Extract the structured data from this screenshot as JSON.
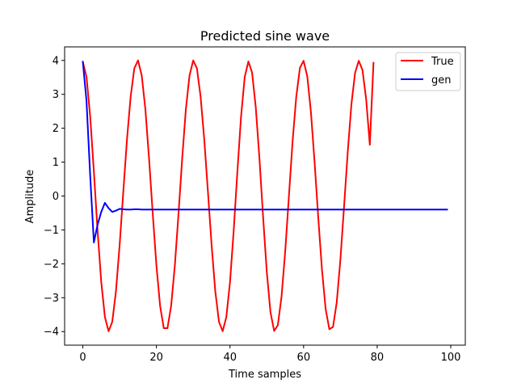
{
  "chart_data": {
    "type": "line",
    "title": "Predicted sine wave",
    "xlabel": "Time samples",
    "ylabel": "Amplitude",
    "xlim": [
      -4.95,
      103.95
    ],
    "ylim": [
      -4.4,
      4.4
    ],
    "xticks": [
      0,
      20,
      40,
      60,
      80,
      100
    ],
    "yticks": [
      -4,
      -3,
      -2,
      -1,
      0,
      1,
      2,
      3,
      4
    ],
    "xtick_labels": [
      "0",
      "20",
      "40",
      "60",
      "80",
      "100"
    ],
    "ytick_labels": [
      "−4",
      "−3",
      "−2",
      "−1",
      "0",
      "1",
      "2",
      "3",
      "4"
    ],
    "grid": false,
    "legend_position": "top-right",
    "series": [
      {
        "name": "True",
        "color": "#ff0000",
        "x": [
          0,
          1,
          2,
          3,
          4,
          5,
          6,
          7,
          8,
          9,
          10,
          11,
          12,
          13,
          14,
          15,
          16,
          17,
          18,
          19,
          20,
          21,
          22,
          23,
          24,
          25,
          26,
          27,
          28,
          29,
          30,
          31,
          32,
          33,
          34,
          35,
          36,
          37,
          38,
          39,
          40,
          41,
          42,
          43,
          44,
          45,
          46,
          47,
          48,
          49,
          50,
          51,
          52,
          53,
          54,
          55,
          56,
          57,
          58,
          59,
          60,
          61,
          62,
          63,
          64,
          65,
          66,
          67,
          68,
          69,
          70,
          71,
          72,
          73,
          74,
          75,
          76,
          77,
          78,
          79
        ],
        "y": [
          3.96,
          3.51,
          2.35,
          0.72,
          -1.01,
          -2.53,
          -3.57,
          -3.99,
          -3.71,
          -2.81,
          -1.45,
          0.13,
          1.67,
          2.94,
          3.77,
          4.0,
          3.56,
          2.56,
          1.1,
          -0.52,
          -2.05,
          -3.24,
          -3.9,
          -3.9,
          -3.24,
          -2.06,
          -0.53,
          1.1,
          2.56,
          3.56,
          4.0,
          3.77,
          2.94,
          1.67,
          0.13,
          -1.45,
          -2.81,
          -3.71,
          -3.99,
          -3.57,
          -2.54,
          -1.02,
          0.71,
          2.34,
          3.51,
          3.97,
          3.64,
          2.62,
          1.11,
          -0.63,
          -2.24,
          -3.43,
          -3.98,
          -3.81,
          -2.97,
          -1.64,
          -0.02,
          1.6,
          2.92,
          3.78,
          3.99,
          3.53,
          2.47,
          0.98,
          -0.66,
          -2.18,
          -3.34,
          -3.93,
          -3.86,
          -3.14,
          -1.88,
          -0.31,
          1.3,
          2.71,
          3.64,
          3.99,
          3.72,
          2.86,
          1.51,
          3.93
        ]
      },
      {
        "name": "gen",
        "color": "#0000ff",
        "x": [
          0,
          1,
          2,
          3,
          4,
          5,
          6,
          7,
          8,
          9,
          10,
          11,
          12,
          13,
          14,
          15,
          16,
          17,
          18,
          19,
          20,
          21,
          22,
          23,
          24,
          25,
          26,
          27,
          28,
          29,
          30,
          31,
          32,
          33,
          34,
          35,
          36,
          37,
          38,
          39,
          40,
          41,
          42,
          43,
          44,
          45,
          46,
          47,
          48,
          49,
          50,
          51,
          52,
          53,
          54,
          55,
          56,
          57,
          58,
          59,
          60,
          61,
          62,
          63,
          64,
          65,
          66,
          67,
          68,
          69,
          70,
          71,
          72,
          73,
          74,
          75,
          76,
          77,
          78,
          79,
          80,
          81,
          82,
          83,
          84,
          85,
          86,
          87,
          88,
          89,
          90,
          91,
          92,
          93,
          94,
          95,
          96,
          97,
          98,
          99
        ],
        "y": [
          3.96,
          2.8,
          0.6,
          -1.37,
          -0.85,
          -0.47,
          -0.2,
          -0.36,
          -0.47,
          -0.43,
          -0.38,
          -0.39,
          -0.4,
          -0.4,
          -0.39,
          -0.39,
          -0.4,
          -0.4,
          -0.4,
          -0.4,
          -0.4,
          -0.4,
          -0.4,
          -0.4,
          -0.4,
          -0.4,
          -0.4,
          -0.4,
          -0.4,
          -0.4,
          -0.4,
          -0.4,
          -0.4,
          -0.4,
          -0.4,
          -0.4,
          -0.4,
          -0.4,
          -0.4,
          -0.4,
          -0.4,
          -0.4,
          -0.4,
          -0.4,
          -0.4,
          -0.4,
          -0.4,
          -0.4,
          -0.4,
          -0.4,
          -0.4,
          -0.4,
          -0.4,
          -0.4,
          -0.4,
          -0.4,
          -0.4,
          -0.4,
          -0.4,
          -0.4,
          -0.4,
          -0.4,
          -0.4,
          -0.4,
          -0.4,
          -0.4,
          -0.4,
          -0.4,
          -0.4,
          -0.4,
          -0.4,
          -0.4,
          -0.4,
          -0.4,
          -0.4,
          -0.4,
          -0.4,
          -0.4,
          -0.4,
          -0.4,
          -0.4,
          -0.4,
          -0.4,
          -0.4,
          -0.4,
          -0.4,
          -0.4,
          -0.4,
          -0.4,
          -0.4,
          -0.4,
          -0.4,
          -0.4,
          -0.4,
          -0.4,
          -0.4,
          -0.4,
          -0.4,
          -0.4,
          -0.4
        ]
      }
    ]
  }
}
